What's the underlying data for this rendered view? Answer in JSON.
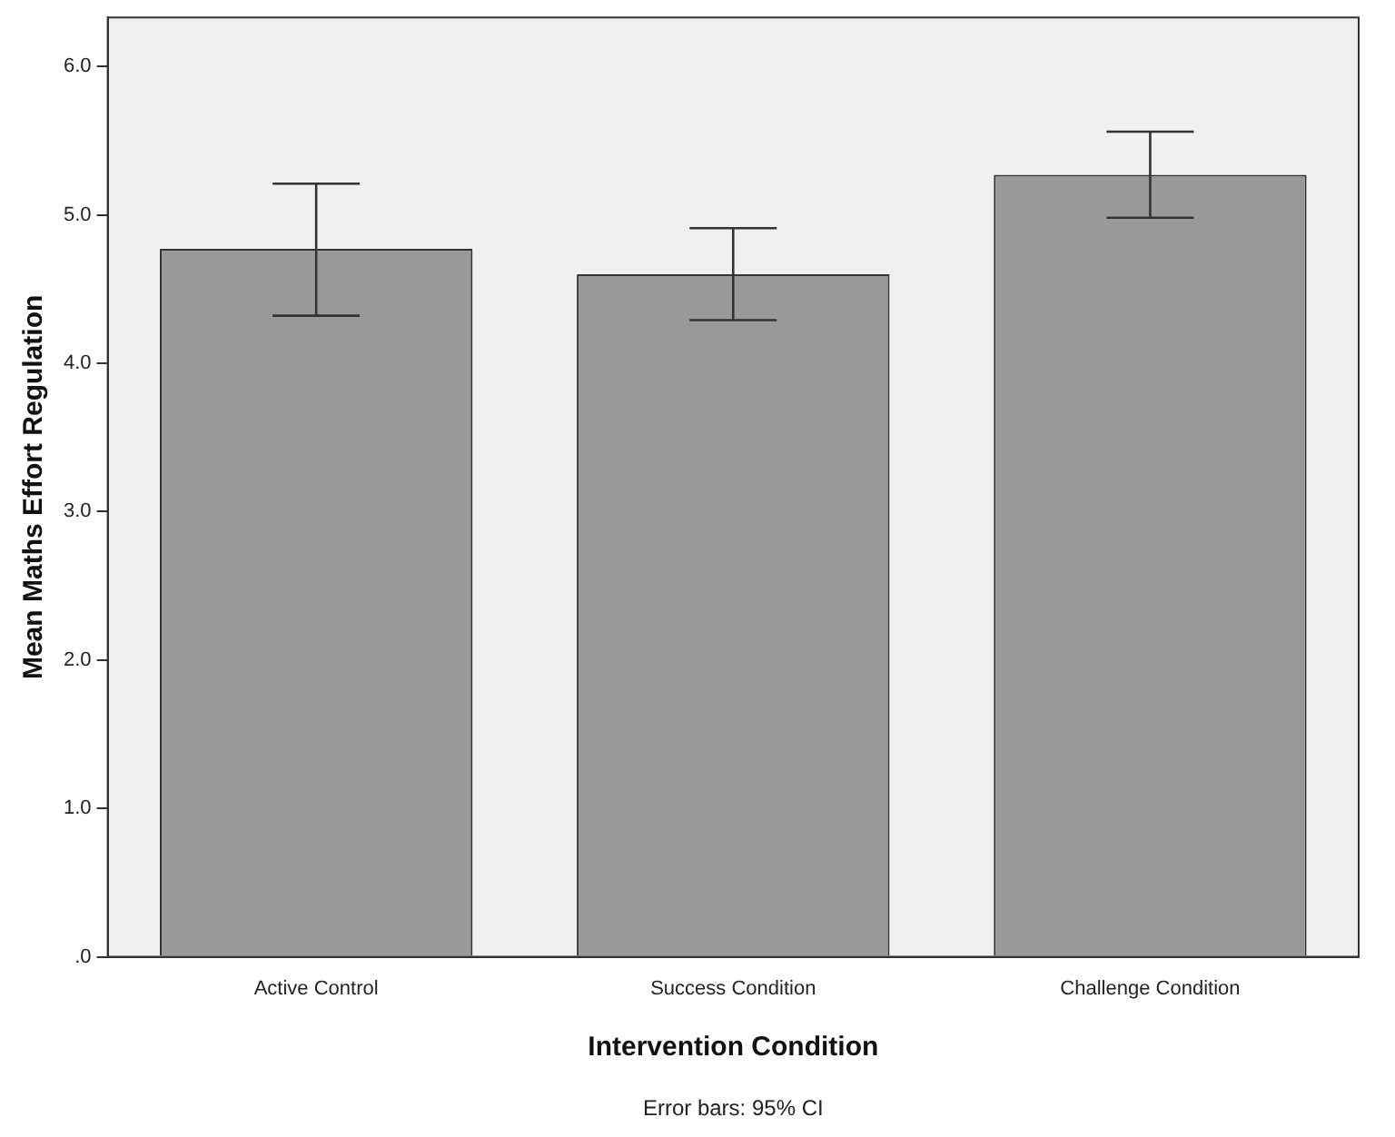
{
  "chart_data": {
    "type": "bar",
    "xlabel": "Intervention Condition",
    "ylabel": "Mean Maths Effort Regulation",
    "categories": [
      "Active Control",
      "Success Condition",
      "Challenge Condition"
    ],
    "values": [
      4.77,
      4.6,
      5.27
    ],
    "color": "#999999",
    "errors": [
      [
        4.32,
        5.21
      ],
      [
        4.29,
        4.91
      ],
      [
        4.98,
        5.56
      ]
    ],
    "ylim": [
      0,
      6.33
    ],
    "yticks": [
      {
        "value": 0,
        "label": ".0"
      },
      {
        "value": 1,
        "label": "1.0"
      },
      {
        "value": 2,
        "label": "2.0"
      },
      {
        "value": 3,
        "label": "3.0"
      },
      {
        "value": 4,
        "label": "4.0"
      },
      {
        "value": 5,
        "label": "5.0"
      },
      {
        "value": 6,
        "label": "6.0"
      }
    ],
    "grid": false,
    "legend": false,
    "annotations": [
      "Error bars: 95% CI"
    ]
  }
}
